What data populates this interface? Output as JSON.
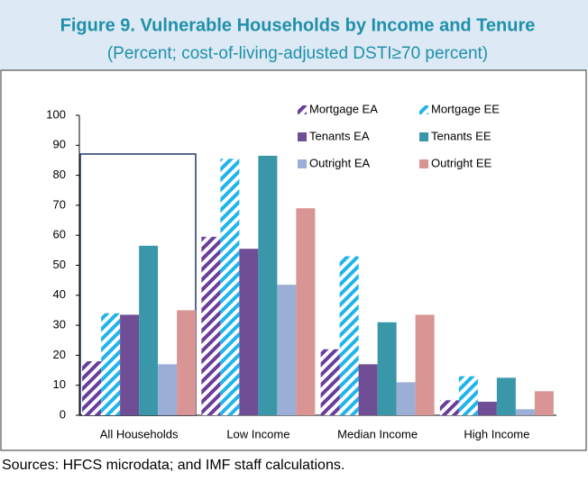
{
  "chart_data": {
    "type": "bar",
    "title": "Figure 9. Vulnerable Households by Income and Tenure",
    "subtitle": "(Percent; cost-of-living-adjusted DSTI≥70 percent)",
    "categories": [
      "All Households",
      "Low Income",
      "Median Income",
      "High Income"
    ],
    "series": [
      {
        "name": "Mortgage EA",
        "color": "#6a3d9a",
        "pattern": "hatch",
        "values": [
          18,
          59.5,
          22,
          5
        ]
      },
      {
        "name": "Mortgage EE",
        "color": "#1fb4ea",
        "pattern": "hatch",
        "values": [
          34,
          85.5,
          53,
          13
        ]
      },
      {
        "name": "Tenants EA",
        "color": "#6f4e96",
        "values": [
          33.5,
          55.5,
          17,
          4.5
        ]
      },
      {
        "name": "Tenants EE",
        "color": "#3a97aa",
        "values": [
          56.5,
          86.5,
          31,
          12.5
        ]
      },
      {
        "name": "Outright EA",
        "color": "#9aaed6",
        "values": [
          17,
          43.5,
          11,
          2
        ]
      },
      {
        "name": "Outright EE",
        "color": "#d99594",
        "values": [
          35,
          69,
          33.5,
          8
        ]
      }
    ],
    "ylim": [
      0,
      100
    ],
    "yticks": [
      0,
      10,
      20,
      30,
      40,
      50,
      60,
      70,
      80,
      90,
      100
    ],
    "grid": false,
    "legend": "top-right",
    "sources": "Sources: HFCS microdata; and IMF staff calculations."
  }
}
